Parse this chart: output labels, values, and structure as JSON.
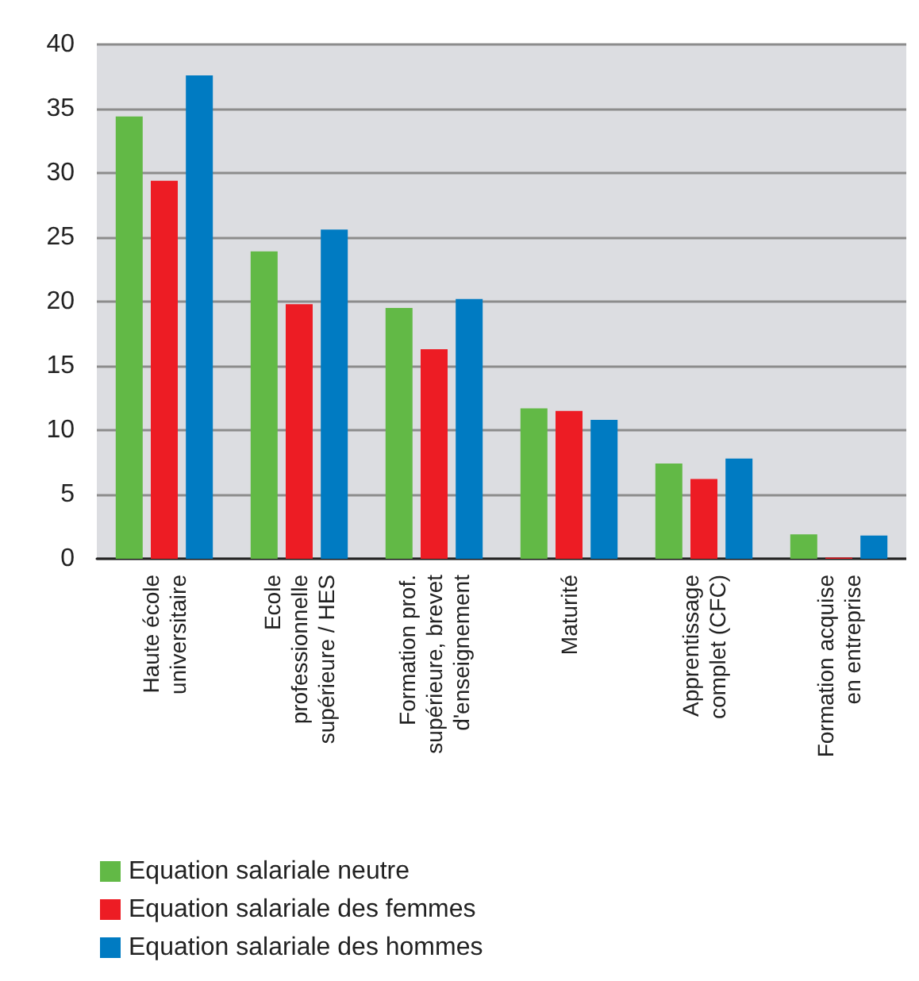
{
  "chart_data": {
    "type": "bar",
    "categories": [
      "Haute école\nuniversitaire",
      "Ecole\nprofessionnelle\nsupérieure / HES",
      "Formation prof.\nsupérieure, brevet\nd'enseignement",
      "Maturité",
      "Apprentissage\ncomplet (CFC)",
      "Formation acquise\nen entreprise"
    ],
    "series": [
      {
        "name": "Equation salariale neutre",
        "color": "#62b946",
        "values": [
          34.4,
          23.9,
          19.5,
          11.7,
          7.4,
          1.9
        ]
      },
      {
        "name": "Equation salariale des femmes",
        "color": "#ed1c24",
        "values": [
          29.4,
          19.8,
          16.3,
          11.5,
          6.2,
          0.1
        ]
      },
      {
        "name": "Equation salariale des hommes",
        "color": "#007bc2",
        "values": [
          37.6,
          25.6,
          20.2,
          10.8,
          7.8,
          1.8
        ]
      }
    ],
    "ylim": [
      0,
      40
    ],
    "yticks": [
      0,
      5,
      10,
      15,
      20,
      25,
      30,
      35,
      40
    ],
    "grid": "y",
    "legend": "bottom left"
  }
}
